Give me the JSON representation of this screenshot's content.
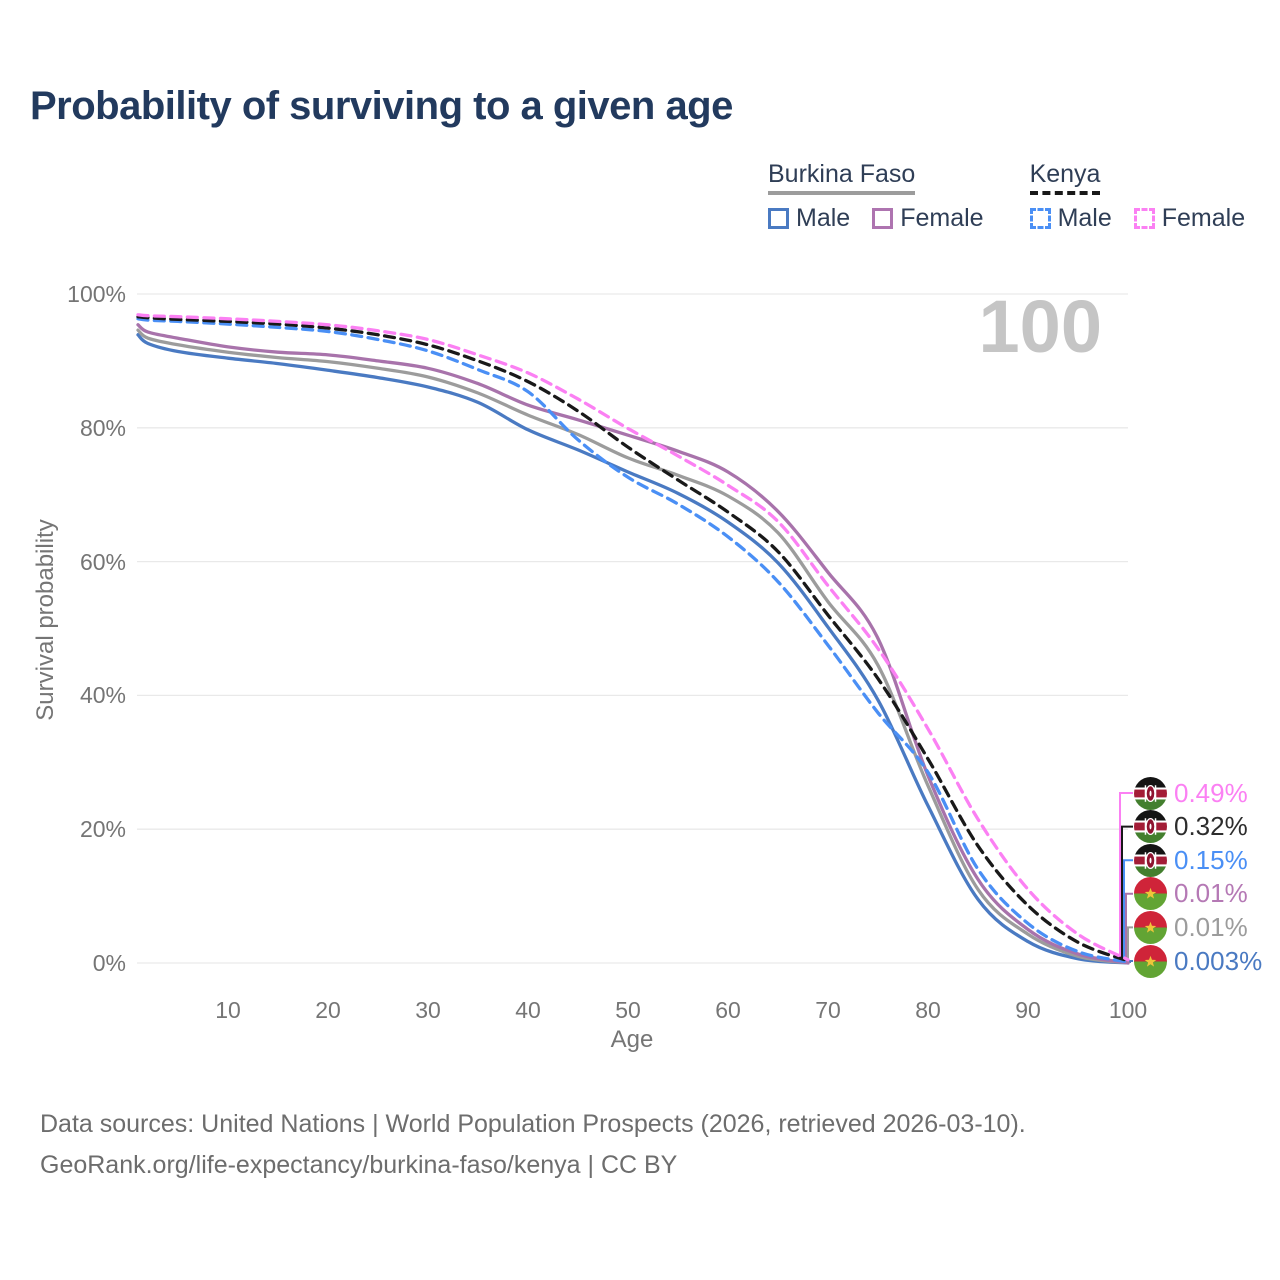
{
  "page": {
    "title": "Probability of surviving to a given age",
    "watermark": "100",
    "footer_line1": "Data sources: United Nations | World Population Prospects (2026, retrieved 2026-03-10).",
    "footer_line2": "GeoRank.org/life-expectancy/burkina-faso/kenya | CC BY"
  },
  "legend": {
    "groups": [
      {
        "title": "Burkina Faso",
        "line_style": "solid",
        "items": [
          {
            "label": "Male",
            "color": "#4a7ac2",
            "dashed": false
          },
          {
            "label": "Female",
            "color": "#ae74b0",
            "dashed": false
          }
        ]
      },
      {
        "title": "Kenya",
        "line_style": "dashed",
        "items": [
          {
            "label": "Male",
            "color": "#4a8ff5",
            "dashed": true
          },
          {
            "label": "Female",
            "color": "#fb80f3",
            "dashed": true
          }
        ]
      }
    ]
  },
  "chart_data": {
    "type": "line",
    "title": "Probability of surviving to a given age",
    "xlabel": "Age",
    "ylabel": "Survival probability",
    "xlim": [
      0,
      100
    ],
    "ylim": [
      0,
      100
    ],
    "x_ticks": [
      10,
      20,
      30,
      40,
      50,
      60,
      70,
      80,
      90,
      100
    ],
    "y_ticks": [
      0,
      20,
      40,
      60,
      80,
      100
    ],
    "y_tick_suffix": "%",
    "grid": "horizontal",
    "x": [
      1,
      2,
      5,
      10,
      15,
      20,
      25,
      30,
      35,
      40,
      45,
      50,
      55,
      60,
      65,
      70,
      75,
      80,
      85,
      90,
      95,
      100
    ],
    "series": [
      {
        "id": "bf_male",
        "name": "Burkina Faso Male",
        "color": "#4a7ac2",
        "dashed": false,
        "values": [
          93.9,
          92.6,
          91.4,
          90.4,
          89.6,
          88.6,
          87.5,
          86.1,
          83.8,
          79.7,
          76.7,
          73.4,
          70.2,
          65.9,
          59.8,
          50.2,
          39.3,
          23.5,
          9.5,
          3.2,
          0.65,
          0.003
        ]
      },
      {
        "id": "bf_total",
        "name": "Burkina Faso",
        "color": "#9c9c9c",
        "dashed": false,
        "values": [
          94.6,
          93.4,
          92.4,
          91.3,
          90.5,
          89.9,
          88.9,
          87.6,
          85.2,
          81.9,
          79.0,
          75.5,
          72.9,
          69.8,
          64.3,
          54.0,
          44.5,
          26.5,
          11.0,
          4.3,
          1.0,
          0.01
        ]
      },
      {
        "id": "bf_female",
        "name": "Burkina Faso Female",
        "color": "#a873ab",
        "dashed": false,
        "values": [
          95.4,
          94.3,
          93.4,
          92.1,
          91.3,
          90.9,
          90.0,
          88.9,
          86.6,
          83.4,
          81.2,
          78.9,
          76.5,
          73.4,
          67.5,
          58.4,
          48.5,
          28.0,
          12.5,
          5.0,
          1.35,
          0.01
        ]
      },
      {
        "id": "ke_male",
        "name": "Kenya Male",
        "color": "#4a8ff5",
        "dashed": true,
        "values": [
          96.3,
          96.1,
          95.9,
          95.5,
          95.0,
          94.4,
          93.2,
          91.5,
          88.7,
          85.4,
          78.2,
          72.6,
          68.6,
          63.7,
          57.0,
          47.5,
          37.4,
          28.5,
          14.0,
          5.9,
          1.7,
          0.15
        ]
      },
      {
        "id": "ke_total",
        "name": "Kenya",
        "color": "#191919",
        "dashed": true,
        "values": [
          96.6,
          96.45,
          96.2,
          95.9,
          95.5,
          94.9,
          93.9,
          92.4,
          90.0,
          86.9,
          82.5,
          77.1,
          72.2,
          67.4,
          61.5,
          52.0,
          42.5,
          30.5,
          17.5,
          8.6,
          3.1,
          0.32
        ]
      },
      {
        "id": "ke_female",
        "name": "Kenya Female",
        "color": "#fb80f3",
        "dashed": true,
        "values": [
          96.9,
          96.75,
          96.6,
          96.3,
          95.9,
          95.4,
          94.5,
          93.2,
          90.9,
          88.2,
          84.3,
          79.9,
          75.8,
          71.4,
          66.0,
          56.4,
          47.0,
          35.0,
          21.5,
          11.0,
          4.3,
          0.49
        ]
      }
    ],
    "end_labels": [
      {
        "flag": "kenya",
        "value": "0.49%",
        "color": "#fb80f3",
        "series": "ke_female"
      },
      {
        "flag": "kenya",
        "value": "0.32%",
        "color": "#2d2d2d",
        "series": "ke_total"
      },
      {
        "flag": "kenya",
        "value": "0.15%",
        "color": "#4a8ff5",
        "series": "ke_male"
      },
      {
        "flag": "burkina-faso",
        "value": "0.01%",
        "color": "#b579b5",
        "series": "bf_female"
      },
      {
        "flag": "burkina-faso",
        "value": "0.01%",
        "color": "#9c9c9c",
        "series": "bf_total"
      },
      {
        "flag": "burkina-faso",
        "value": "0.003%",
        "color": "#4a7ac2",
        "series": "bf_male"
      }
    ]
  }
}
